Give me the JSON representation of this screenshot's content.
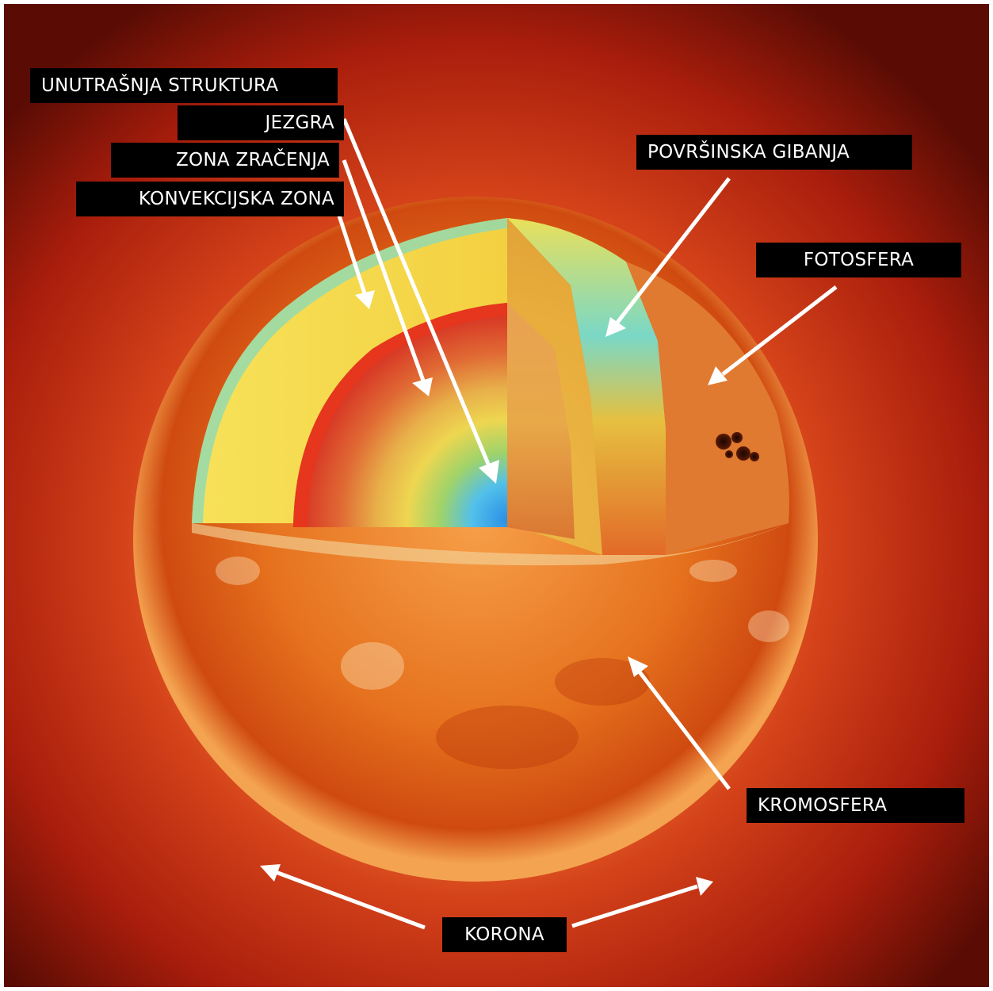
{
  "labels": {
    "internal_structure": "UNUTRAŠNJA STRUKTURA",
    "core": "JEZGRA",
    "radiative_zone": "ZONA ZRAČENJA",
    "convective_zone": "KONVEKCIJSKA ZONA",
    "surface_motions": "POVRŠINSKA GIBANJA",
    "photosphere": "FOTOSFERA",
    "chromosphere": "KROMOSFERA",
    "corona": "KORONA"
  },
  "colors": {
    "label_background": "#000000",
    "label_text": "#ffffff",
    "arrow": "#ffffff",
    "corona_glow": "#c62a0a",
    "sun_surface": "#e0661a",
    "convective_layer": "#f4e04a",
    "radiative_ring": "#e8361c",
    "core": "#3aa8e8"
  }
}
